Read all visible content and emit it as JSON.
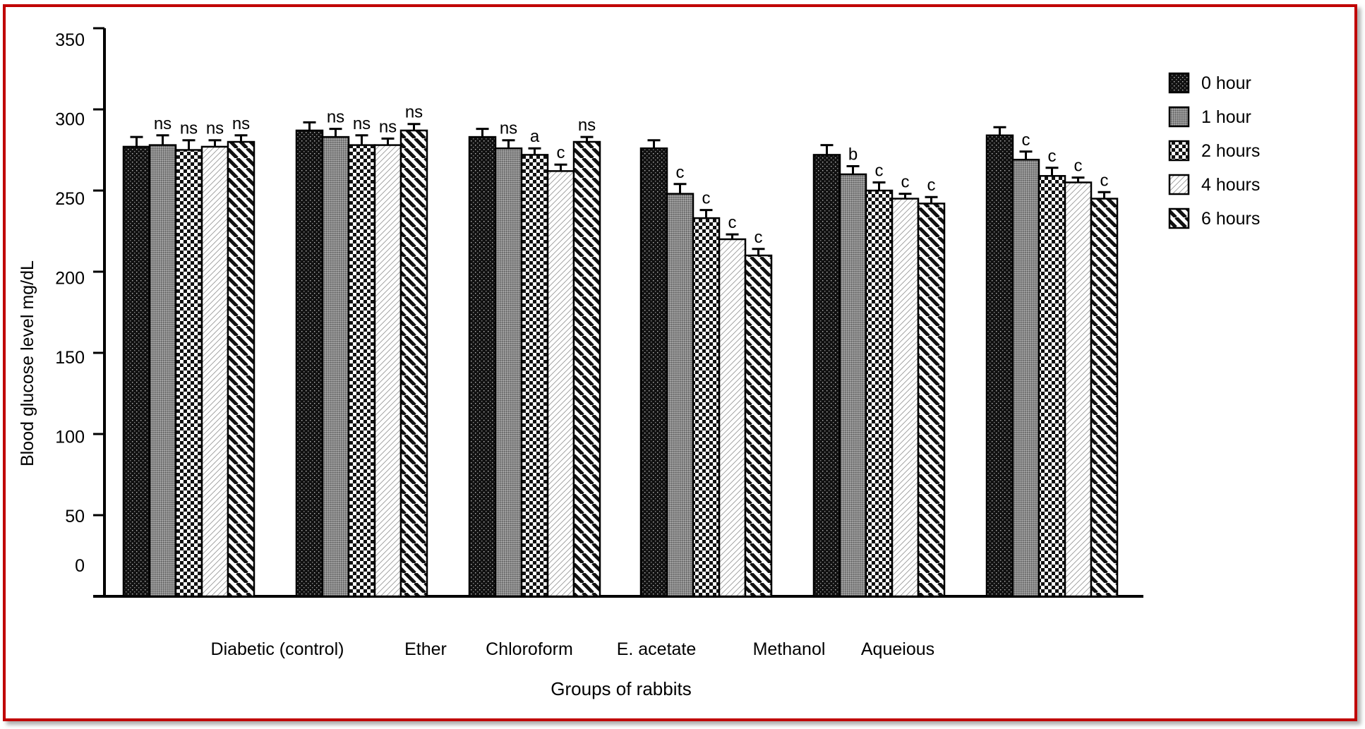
{
  "chart_data": {
    "type": "bar",
    "title": "",
    "xlabel": "Groups  of rabbits",
    "ylabel": "Blood glucose level  mg/dL",
    "ylim": [
      0,
      350
    ],
    "yticks": [
      "350",
      "300",
      "250",
      "200",
      "150",
      "100",
      "50",
      "0"
    ],
    "category_labels": [
      "Diabetic (control)",
      "Ether",
      "Chloroform",
      "E. acetate",
      "Methanol",
      "Aqueious"
    ],
    "grid": false,
    "legend_position": "top-right",
    "series": [
      {
        "name": "0 hour",
        "pattern": "dots-dark"
      },
      {
        "name": "1 hour",
        "pattern": "fine-grey"
      },
      {
        "name": "2 hours",
        "pattern": "checker"
      },
      {
        "name": "4 hours",
        "pattern": "light-dash"
      },
      {
        "name": "6 hours",
        "pattern": "diagonal-stripes"
      }
    ],
    "groups": [
      {
        "values": [
          277,
          278,
          275,
          277,
          280
        ],
        "errors": [
          6,
          6,
          6,
          4,
          4
        ],
        "annotations": [
          "",
          "ns",
          "ns",
          "ns",
          "ns"
        ]
      },
      {
        "values": [
          287,
          283,
          278,
          278,
          287
        ],
        "errors": [
          5,
          5,
          6,
          4,
          4
        ],
        "annotations": [
          "",
          "ns",
          "ns",
          "ns",
          "ns"
        ]
      },
      {
        "values": [
          283,
          276,
          272,
          262,
          280
        ],
        "errors": [
          5,
          5,
          4,
          4,
          3
        ],
        "annotations": [
          "",
          "ns",
          "a",
          "c",
          "ns"
        ]
      },
      {
        "values": [
          276,
          248,
          233,
          220,
          210
        ],
        "errors": [
          5,
          6,
          5,
          3,
          4
        ],
        "annotations": [
          "",
          "c",
          "c",
          "c",
          "c"
        ]
      },
      {
        "values": [
          272,
          260,
          250,
          245,
          242
        ],
        "errors": [
          6,
          5,
          5,
          3,
          4
        ],
        "annotations": [
          "",
          "b",
          "c",
          "c",
          "c"
        ]
      },
      {
        "values": [
          284,
          269,
          259,
          255,
          245
        ],
        "errors": [
          5,
          5,
          5,
          3,
          4
        ],
        "annotations": [
          "",
          "c",
          "c",
          "c",
          "c"
        ]
      }
    ]
  }
}
